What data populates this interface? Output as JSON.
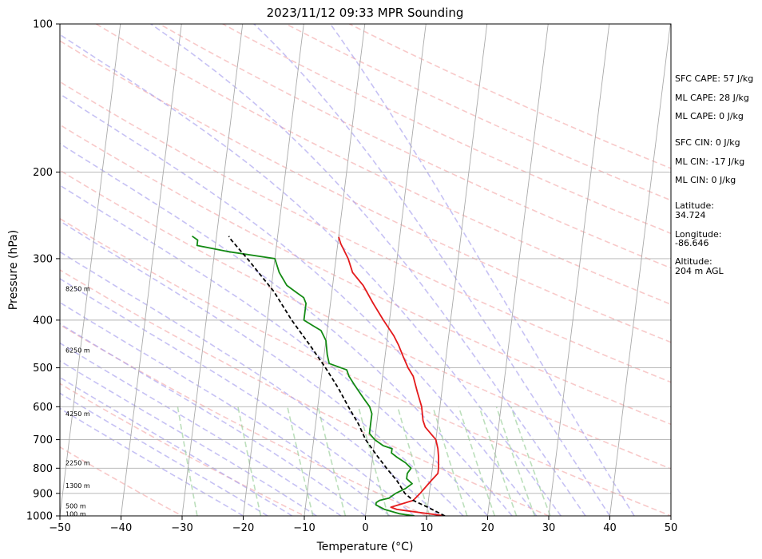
{
  "chart_data": {
    "type": "line",
    "title": "2023/11/12 09:33 MPR Sounding",
    "xlabel": "Temperature (°C)",
    "ylabel": "Pressure (hPa)",
    "xlim": [
      -50,
      50
    ],
    "ylim": [
      1000,
      100
    ],
    "yscale": "log",
    "x_ticks": [
      -50,
      -40,
      -30,
      -20,
      -10,
      0,
      10,
      20,
      30,
      40,
      50
    ],
    "y_ticks": [
      1000,
      900,
      800,
      700,
      600,
      500,
      400,
      300,
      200,
      100
    ],
    "grid": true,
    "colors": {
      "temperature": "#e41a1c",
      "dewpoint": "#138a13",
      "parcel": "#000000",
      "isotherm": "#aaaaaa",
      "dry_adiabat": "#f4a5a5",
      "moist_adiabat": "#a8a0ee",
      "mixing_ratio": "#9fd29f",
      "gridline": "#b0b0b0"
    },
    "series": [
      {
        "key": "temperature",
        "points": [
          [
            1000,
            13
          ],
          [
            970,
            5
          ],
          [
            960,
            4
          ],
          [
            930,
            7.5
          ],
          [
            900,
            8.5
          ],
          [
            850,
            10
          ],
          [
            820,
            11
          ],
          [
            800,
            11
          ],
          [
            760,
            10.8
          ],
          [
            730,
            10.5
          ],
          [
            700,
            10
          ],
          [
            660,
            8
          ],
          [
            640,
            7.5
          ],
          [
            600,
            7
          ],
          [
            560,
            6
          ],
          [
            520,
            5
          ],
          [
            500,
            4
          ],
          [
            475,
            3
          ],
          [
            450,
            2
          ],
          [
            430,
            1
          ],
          [
            400,
            -1
          ],
          [
            370,
            -3
          ],
          [
            340,
            -5
          ],
          [
            330,
            -6
          ],
          [
            320,
            -7
          ],
          [
            300,
            -8
          ],
          [
            280,
            -9.5
          ],
          [
            271,
            -10
          ]
        ]
      },
      {
        "key": "dewpoint",
        "points": [
          [
            1000,
            8
          ],
          [
            990,
            5.5
          ],
          [
            970,
            3
          ],
          [
            950,
            1.5
          ],
          [
            940,
            1.5
          ],
          [
            930,
            2
          ],
          [
            920,
            3.5
          ],
          [
            900,
            4.5
          ],
          [
            880,
            6
          ],
          [
            860,
            7
          ],
          [
            840,
            6
          ],
          [
            820,
            6
          ],
          [
            800,
            6.5
          ],
          [
            780,
            5.5
          ],
          [
            760,
            4
          ],
          [
            745,
            3
          ],
          [
            730,
            3
          ],
          [
            720,
            1.5
          ],
          [
            700,
            0
          ],
          [
            680,
            -1
          ],
          [
            660,
            -1
          ],
          [
            640,
            -1
          ],
          [
            620,
            -1
          ],
          [
            600,
            -1.5
          ],
          [
            580,
            -2.5
          ],
          [
            560,
            -3.5
          ],
          [
            540,
            -4.5
          ],
          [
            520,
            -5.5
          ],
          [
            505,
            -6
          ],
          [
            490,
            -9
          ],
          [
            470,
            -9.5
          ],
          [
            440,
            -10
          ],
          [
            420,
            -11
          ],
          [
            410,
            -12.5
          ],
          [
            400,
            -14
          ],
          [
            370,
            -14
          ],
          [
            360,
            -14.5
          ],
          [
            350,
            -16
          ],
          [
            340,
            -17.5
          ],
          [
            320,
            -19
          ],
          [
            300,
            -20
          ],
          [
            290,
            -28
          ],
          [
            282,
            -33
          ],
          [
            275,
            -33
          ],
          [
            270,
            -34
          ]
        ]
      },
      {
        "key": "parcel",
        "points": [
          [
            1000,
            13
          ],
          [
            960,
            10
          ],
          [
            930,
            7.5
          ],
          [
            900,
            6
          ],
          [
            850,
            4.5
          ],
          [
            800,
            2.5
          ],
          [
            750,
            0.5
          ],
          [
            700,
            -1.5
          ],
          [
            650,
            -3
          ],
          [
            600,
            -5
          ],
          [
            550,
            -7
          ],
          [
            500,
            -9.5
          ],
          [
            450,
            -12.5
          ],
          [
            400,
            -16
          ],
          [
            350,
            -19.5
          ],
          [
            300,
            -24.5
          ],
          [
            275,
            -27.5
          ],
          [
            270,
            -28
          ]
        ]
      }
    ],
    "height_labels": [
      {
        "p": 990,
        "label": "100 m"
      },
      {
        "p": 955,
        "label": "500 m"
      },
      {
        "p": 868,
        "label": "1300 m"
      },
      {
        "p": 780,
        "label": "2250 m"
      },
      {
        "p": 620,
        "label": "4250 m"
      },
      {
        "p": 460,
        "label": "6250 m"
      },
      {
        "p": 345,
        "label": "8250 m"
      }
    ],
    "indices": {
      "cape": [
        "SFC CAPE: 57 J/kg",
        "ML CAPE: 28 J/kg",
        "ML CAPE: 0 J/kg"
      ],
      "cin": [
        "SFC CIN: 0 J/kg",
        "ML CIN: -17 J/kg",
        "ML CIN: 0 J/kg"
      ],
      "latitude_label": "Latitude:",
      "latitude_value": "34.724",
      "longitude_label": "Longitude:",
      "longitude_value": "-86.646",
      "altitude_label": "Altitude:",
      "altitude_value": "204 m AGL"
    }
  }
}
